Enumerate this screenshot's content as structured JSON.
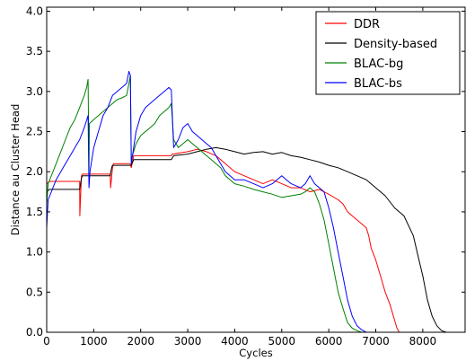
{
  "chart_data": {
    "type": "line",
    "title": "",
    "xlabel": "Cycles",
    "ylabel": "Distance au Cluster Head",
    "xlim": [
      0,
      8900
    ],
    "ylim": [
      0.0,
      4.05
    ],
    "xticks": [
      0,
      1000,
      2000,
      3000,
      4000,
      5000,
      6000,
      7000,
      8000
    ],
    "yticks": [
      0.0,
      0.5,
      1.0,
      1.5,
      2.0,
      2.5,
      3.0,
      3.5,
      4.0
    ],
    "xtick_labels": [
      "0",
      "1000",
      "2000",
      "3000",
      "4000",
      "5000",
      "6000",
      "7000",
      "8000"
    ],
    "ytick_labels": [
      "0.0",
      "0.5",
      "1.0",
      "1.5",
      "2.0",
      "2.5",
      "3.0",
      "3.5",
      "4.0"
    ],
    "grid": false,
    "legend_position": "top-right",
    "series": [
      {
        "name": "DDR",
        "color": "#ff0000",
        "x": [
          0,
          60,
          700,
          705,
          740,
          760,
          1350,
          1360,
          1400,
          1420,
          1780,
          1800,
          1850,
          2650,
          2670,
          3000,
          3200,
          3400,
          3600,
          3800,
          4000,
          4200,
          4400,
          4600,
          4800,
          5000,
          5200,
          5400,
          5600,
          5800,
          6000,
          6200,
          6300,
          6400,
          6500,
          6600,
          6700,
          6800,
          6850,
          6900,
          7000,
          7100,
          7200,
          7300,
          7400,
          7450,
          7500,
          7600
        ],
        "y": [
          1.85,
          1.88,
          1.88,
          1.45,
          1.95,
          1.97,
          1.97,
          1.8,
          2.05,
          2.1,
          2.1,
          2.05,
          2.2,
          2.2,
          2.22,
          2.25,
          2.28,
          2.25,
          2.2,
          2.1,
          2.0,
          1.95,
          1.9,
          1.85,
          1.9,
          1.85,
          1.8,
          1.8,
          1.75,
          1.78,
          1.72,
          1.65,
          1.6,
          1.5,
          1.45,
          1.4,
          1.35,
          1.3,
          1.2,
          1.05,
          0.9,
          0.7,
          0.5,
          0.35,
          0.15,
          0.05,
          0.0,
          0.0
        ]
      },
      {
        "name": "Density-based",
        "color": "#000000",
        "x": [
          0,
          60,
          700,
          740,
          760,
          1350,
          1380,
          1400,
          1800,
          1850,
          2650,
          2700,
          3000,
          3200,
          3400,
          3600,
          3800,
          4000,
          4200,
          4400,
          4600,
          4800,
          5000,
          5200,
          5400,
          5600,
          5800,
          6000,
          6200,
          6400,
          6600,
          6800,
          7000,
          7200,
          7400,
          7600,
          7800,
          7900,
          8000,
          8100,
          8200,
          8300,
          8400,
          8500,
          8600
        ],
        "y": [
          1.75,
          1.78,
          1.78,
          1.92,
          1.95,
          1.95,
          2.05,
          2.08,
          2.08,
          2.15,
          2.15,
          2.2,
          2.22,
          2.25,
          2.28,
          2.3,
          2.28,
          2.25,
          2.22,
          2.24,
          2.25,
          2.22,
          2.24,
          2.2,
          2.18,
          2.15,
          2.12,
          2.08,
          2.05,
          2.0,
          1.95,
          1.9,
          1.8,
          1.7,
          1.55,
          1.45,
          1.2,
          0.95,
          0.7,
          0.4,
          0.2,
          0.08,
          0.02,
          0.0,
          0.0
        ]
      },
      {
        "name": "BLAC-bg",
        "color": "#008000",
        "x": [
          0,
          30,
          100,
          200,
          300,
          400,
          500,
          600,
          700,
          800,
          850,
          880,
          900,
          910,
          1000,
          1100,
          1200,
          1300,
          1400,
          1500,
          1600,
          1700,
          1750,
          1780,
          1800,
          1900,
          2000,
          2100,
          2200,
          2300,
          2400,
          2500,
          2600,
          2650,
          2700,
          2800,
          2900,
          3000,
          3100,
          3200,
          3300,
          3400,
          3500,
          3600,
          3700,
          3800,
          3900,
          4000,
          4200,
          4400,
          4600,
          4800,
          5000,
          5200,
          5400,
          5500,
          5600,
          5700,
          5800,
          5900,
          6000,
          6100,
          6200,
          6300,
          6400,
          6500,
          6600,
          6700,
          6800
        ],
        "y": [
          1.6,
          1.85,
          1.95,
          2.1,
          2.25,
          2.4,
          2.55,
          2.65,
          2.8,
          2.95,
          3.05,
          3.15,
          2.0,
          2.6,
          2.65,
          2.7,
          2.75,
          2.8,
          2.85,
          2.9,
          2.92,
          2.95,
          3.1,
          3.2,
          2.15,
          2.35,
          2.45,
          2.5,
          2.55,
          2.6,
          2.7,
          2.75,
          2.8,
          2.85,
          2.4,
          2.3,
          2.35,
          2.4,
          2.35,
          2.3,
          2.25,
          2.2,
          2.15,
          2.1,
          2.05,
          1.95,
          1.9,
          1.85,
          1.82,
          1.78,
          1.75,
          1.72,
          1.68,
          1.7,
          1.72,
          1.75,
          1.8,
          1.75,
          1.6,
          1.4,
          1.1,
          0.8,
          0.5,
          0.3,
          0.12,
          0.05,
          0.02,
          0.0,
          0.0
        ]
      },
      {
        "name": "BLAC-bs",
        "color": "#0000ff",
        "x": [
          0,
          30,
          100,
          200,
          300,
          400,
          500,
          600,
          700,
          800,
          880,
          900,
          920,
          1000,
          1100,
          1200,
          1300,
          1400,
          1500,
          1600,
          1700,
          1750,
          1780,
          1800,
          1900,
          2000,
          2100,
          2200,
          2300,
          2400,
          2500,
          2600,
          2650,
          2700,
          2800,
          2900,
          3000,
          3100,
          3200,
          3300,
          3400,
          3500,
          3600,
          3700,
          3800,
          3900,
          4000,
          4200,
          4400,
          4600,
          4800,
          5000,
          5100,
          5200,
          5400,
          5500,
          5600,
          5700,
          5800,
          5900,
          6000,
          6100,
          6200,
          6300,
          6400,
          6500,
          6600,
          6700,
          6800,
          6900
        ],
        "y": [
          1.3,
          1.65,
          1.75,
          1.9,
          2.0,
          2.1,
          2.2,
          2.3,
          2.4,
          2.55,
          2.7,
          1.8,
          2.0,
          2.3,
          2.5,
          2.7,
          2.8,
          2.95,
          3.0,
          3.05,
          3.1,
          3.25,
          3.2,
          2.1,
          2.5,
          2.7,
          2.8,
          2.85,
          2.9,
          2.95,
          3.0,
          3.05,
          3.02,
          2.3,
          2.4,
          2.55,
          2.6,
          2.5,
          2.45,
          2.4,
          2.35,
          2.3,
          2.2,
          2.1,
          2.0,
          1.95,
          1.9,
          1.9,
          1.85,
          1.8,
          1.85,
          1.95,
          1.9,
          1.85,
          1.8,
          1.85,
          1.95,
          1.85,
          1.8,
          1.75,
          1.55,
          1.3,
          1.0,
          0.7,
          0.4,
          0.2,
          0.08,
          0.03,
          0.0,
          0.0
        ]
      }
    ]
  }
}
